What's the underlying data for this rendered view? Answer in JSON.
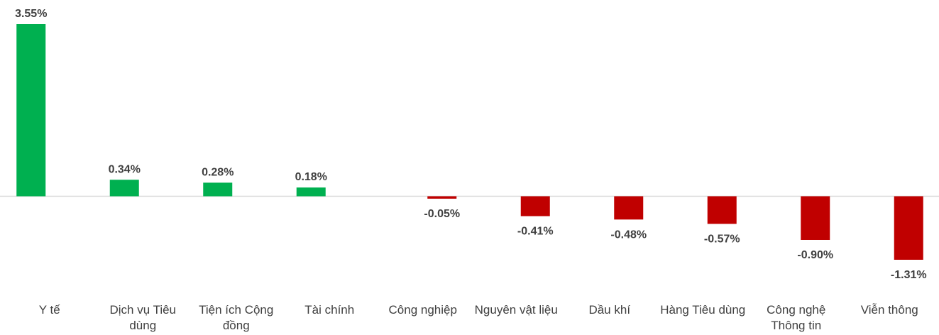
{
  "chart_data": {
    "type": "bar",
    "categories": [
      "Y tế",
      "Dịch vụ Tiêu dùng",
      "Tiện ích Cộng đồng",
      "Tài chính",
      "Công nghiệp",
      "Nguyên vật liệu",
      "Dầu khí",
      "Hàng Tiêu dùng",
      "Công nghệ Thông tin",
      "Viễn thông"
    ],
    "values": [
      3.55,
      0.34,
      0.28,
      0.18,
      -0.05,
      -0.41,
      -0.48,
      -0.57,
      -0.9,
      -1.31
    ],
    "value_labels": [
      "3.55%",
      "0.34%",
      "0.28%",
      "0.18%",
      "-0.05%",
      "-0.41%",
      "-0.48%",
      "-0.57%",
      "-0.90%",
      "-1.31%"
    ],
    "positive_color": "#00b050",
    "negative_color": "#c00000"
  }
}
